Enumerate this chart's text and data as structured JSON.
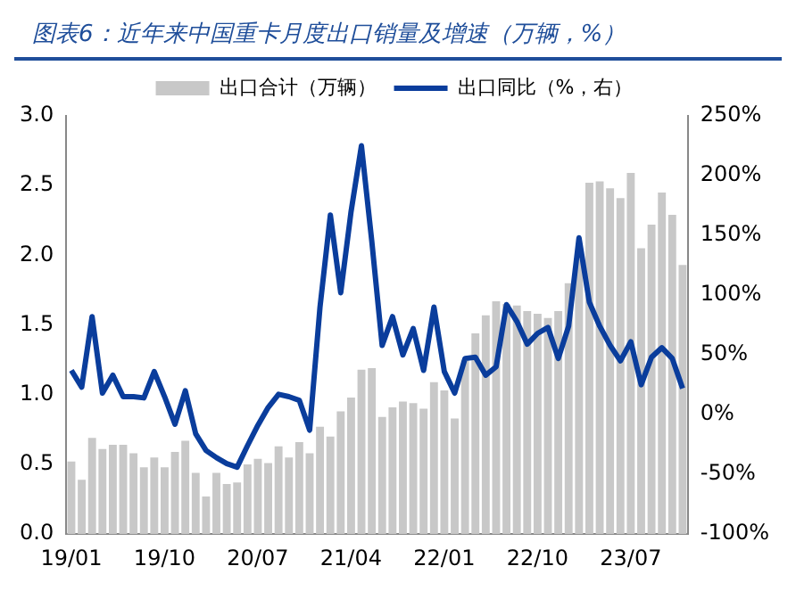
{
  "chart_data": {
    "type": "bar",
    "title": "图表6：近年来中国重卡月度出口销量及增速（万辆，%）",
    "categories": [
      "19/01",
      null,
      null,
      null,
      null,
      null,
      null,
      null,
      null,
      "19/10",
      null,
      null,
      null,
      null,
      null,
      null,
      null,
      null,
      "20/07",
      null,
      null,
      null,
      null,
      null,
      null,
      null,
      null,
      "21/04",
      null,
      null,
      null,
      null,
      null,
      null,
      null,
      null,
      "22/01",
      null,
      null,
      null,
      null,
      null,
      null,
      null,
      null,
      "22/10",
      null,
      null,
      null,
      null,
      null,
      null,
      null,
      null,
      "23/07",
      null,
      null,
      null,
      null,
      null
    ],
    "series": [
      {
        "name": "出口合计（万辆）",
        "color": "#c8c8c8",
        "values": [
          0.52,
          0.39,
          0.69,
          0.61,
          0.64,
          0.64,
          0.58,
          0.48,
          0.55,
          0.48,
          0.59,
          0.67,
          0.44,
          0.27,
          0.44,
          0.36,
          0.37,
          0.5,
          0.54,
          0.51,
          0.63,
          0.55,
          0.66,
          0.58,
          0.77,
          0.7,
          0.88,
          0.98,
          1.18,
          1.19,
          0.84,
          0.91,
          0.95,
          0.94,
          0.9,
          1.09,
          1.03,
          0.83,
          1.25,
          1.44,
          1.57,
          1.67,
          1.65,
          1.64,
          1.6,
          1.58,
          1.55,
          1.6,
          1.8,
          2.0,
          2.52,
          2.53,
          2.48,
          2.41,
          2.59,
          2.05,
          2.22,
          2.45,
          2.29,
          1.93
        ]
      },
      {
        "name": "出口同比（%，右）",
        "type": "line",
        "axis": "y2",
        "color": "#0a3d9c",
        "values": [
          37,
          23,
          82,
          18,
          33,
          15,
          15,
          14,
          36,
          15,
          -8,
          20,
          -16,
          -30,
          -36,
          -41,
          -44,
          -26,
          -9,
          6,
          17,
          15,
          12,
          -13,
          90,
          167,
          102,
          170,
          225,
          145,
          58,
          82,
          50,
          72,
          37,
          90,
          36,
          18,
          47,
          48,
          33,
          40,
          92,
          78,
          59,
          68,
          73,
          47,
          74,
          148,
          94,
          74,
          58,
          45,
          61,
          25,
          48,
          56,
          47,
          22
        ]
      }
    ],
    "ylim": [
      0,
      3.0
    ],
    "yticks": [
      {
        "value": 0,
        "label": "0.0"
      },
      {
        "value": 0.5,
        "label": "0.5"
      },
      {
        "value": 1,
        "label": "1.0"
      },
      {
        "value": 1.5,
        "label": "1.5"
      },
      {
        "value": 2,
        "label": "2.0"
      },
      {
        "value": 2.5,
        "label": "2.5"
      },
      {
        "value": 3,
        "label": "3.0"
      }
    ],
    "y2lim": [
      -100,
      250
    ],
    "y2ticks": [
      {
        "value": -100,
        "label": "-100%"
      },
      {
        "value": -50,
        "label": "-50%"
      },
      {
        "value": 0,
        "label": "0%"
      },
      {
        "value": 50,
        "label": "50%"
      },
      {
        "value": 100,
        "label": "100%"
      },
      {
        "value": 150,
        "label": "150%"
      },
      {
        "value": 200,
        "label": "200%"
      },
      {
        "value": 250,
        "label": "250%"
      }
    ],
    "legend": "top",
    "grid": false,
    "marker": "none",
    "line_style": "solid"
  }
}
